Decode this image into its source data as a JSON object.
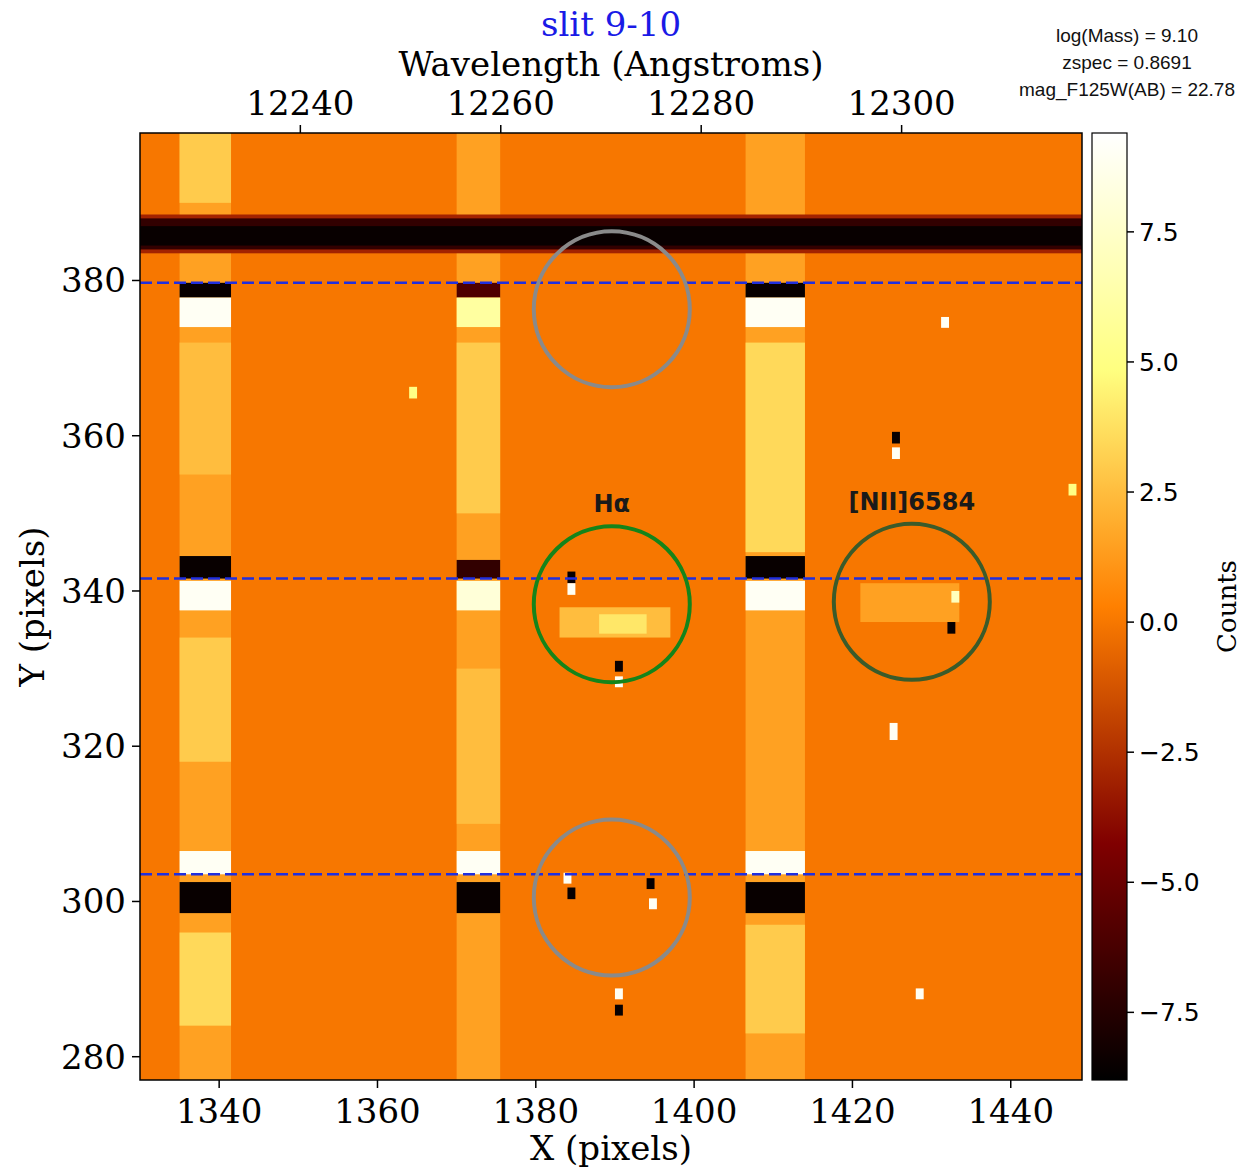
{
  "chart_data": {
    "type": "heatmap",
    "title": "slit 9-10",
    "x_label": "X (pixels)",
    "y_label": "Y (pixels)",
    "x2_label": "Wavelength (Angstroms)",
    "xlim": [
      1330,
      1449
    ],
    "ylim": [
      277,
      399
    ],
    "xticks": [
      1340,
      1360,
      1380,
      1400,
      1420,
      1440
    ],
    "yticks": [
      280,
      300,
      320,
      340,
      360,
      380
    ],
    "x2lim": [
      12224,
      12318
    ],
    "x2ticks": [
      12240,
      12260,
      12280,
      12300
    ],
    "colorbar_label": "Counts",
    "colorbar_lim": [
      -8.8,
      9.4
    ],
    "colorbar_ticks": [
      {
        "value": -7.5,
        "label": "−7.5"
      },
      {
        "value": -5,
        "label": "−5.0"
      },
      {
        "value": -2.5,
        "label": "−2.5"
      },
      {
        "value": 0,
        "label": "0.0"
      },
      2.5,
      {
        "value": 5,
        "label": "5.0"
      },
      7.5
    ],
    "background_value": 0,
    "cells": [
      {
        "x0": 1335,
        "x1": 1341.5,
        "y0": 277,
        "y1": 399,
        "value": 1.5
      },
      {
        "x0": 1335,
        "x1": 1341.5,
        "y0": 390,
        "y1": 399,
        "value": 3
      },
      {
        "x0": 1335,
        "x1": 1341.5,
        "y0": 355,
        "y1": 372,
        "value": 2.5
      },
      {
        "x0": 1335,
        "x1": 1341.5,
        "y0": 318,
        "y1": 334,
        "value": 3
      },
      {
        "x0": 1335,
        "x1": 1341.5,
        "y0": 284,
        "y1": 296,
        "value": 3.5
      },
      {
        "x0": 1370,
        "x1": 1375.5,
        "y0": 277,
        "y1": 399,
        "value": 1.5
      },
      {
        "x0": 1370,
        "x1": 1375.5,
        "y0": 310,
        "y1": 330,
        "value": 2.5
      },
      {
        "x0": 1370,
        "x1": 1375.5,
        "y0": 350,
        "y1": 372,
        "value": 3
      },
      {
        "x0": 1406.5,
        "x1": 1414,
        "y0": 277,
        "y1": 399,
        "value": 1.5
      },
      {
        "x0": 1406.5,
        "x1": 1414,
        "y0": 345,
        "y1": 372,
        "value": 3.5
      },
      {
        "x0": 1406.5,
        "x1": 1414,
        "y0": 283,
        "y1": 297,
        "value": 3
      },
      {
        "x0": 1330,
        "x1": 1449,
        "y0": 383.5,
        "y1": 388.5,
        "value": -3
      },
      {
        "x0": 1330,
        "x1": 1449,
        "y0": 384,
        "y1": 388,
        "value": -7
      },
      {
        "x0": 1330,
        "x1": 1449,
        "y0": 384.5,
        "y1": 387,
        "value": -8.5
      },
      {
        "x0": 1335,
        "x1": 1341.5,
        "y0": 377.8,
        "y1": 379.7,
        "value": -8.5
      },
      {
        "x0": 1335,
        "x1": 1341.5,
        "y0": 374,
        "y1": 377.8,
        "value": 9
      },
      {
        "x0": 1335,
        "x1": 1341.5,
        "y0": 341.6,
        "y1": 344.5,
        "value": -8.5
      },
      {
        "x0": 1335,
        "x1": 1341.5,
        "y0": 337.5,
        "y1": 341.3,
        "value": 9
      },
      {
        "x0": 1335,
        "x1": 1341.5,
        "y0": 303.5,
        "y1": 306.5,
        "value": 9
      },
      {
        "x0": 1335,
        "x1": 1341.5,
        "y0": 298.5,
        "y1": 302.5,
        "value": -8.5
      },
      {
        "x0": 1370,
        "x1": 1375.5,
        "y0": 377.8,
        "y1": 379.7,
        "value": -6
      },
      {
        "x0": 1370,
        "x1": 1375.5,
        "y0": 374,
        "y1": 377.8,
        "value": 6
      },
      {
        "x0": 1370,
        "x1": 1375.5,
        "y0": 341.6,
        "y1": 344,
        "value": -7
      },
      {
        "x0": 1370,
        "x1": 1375.5,
        "y0": 337.5,
        "y1": 341.3,
        "value": 8
      },
      {
        "x0": 1370,
        "x1": 1375.5,
        "y0": 303.5,
        "y1": 306.5,
        "value": 9
      },
      {
        "x0": 1370,
        "x1": 1375.5,
        "y0": 298.5,
        "y1": 302.5,
        "value": -8.5
      },
      {
        "x0": 1406.5,
        "x1": 1414,
        "y0": 377.8,
        "y1": 379.7,
        "value": -8.5
      },
      {
        "x0": 1406.5,
        "x1": 1414,
        "y0": 374,
        "y1": 377.8,
        "value": 9
      },
      {
        "x0": 1406.5,
        "x1": 1414,
        "y0": 341.6,
        "y1": 344.5,
        "value": -8.5
      },
      {
        "x0": 1406.5,
        "x1": 1414,
        "y0": 337.5,
        "y1": 341.3,
        "value": 9
      },
      {
        "x0": 1406.5,
        "x1": 1414,
        "y0": 303.5,
        "y1": 306.5,
        "value": 9
      },
      {
        "x0": 1406.5,
        "x1": 1414,
        "y0": 298.5,
        "y1": 302.5,
        "value": -8.5
      },
      {
        "x0": 1383,
        "x1": 1397,
        "y0": 334,
        "y1": 337.9,
        "value": 2.5
      },
      {
        "x0": 1388,
        "x1": 1394,
        "y0": 334.5,
        "y1": 337,
        "value": 4
      },
      {
        "x0": 1421,
        "x1": 1433.5,
        "y0": 336,
        "y1": 341,
        "value": 1.5
      },
      {
        "x0": 1384,
        "x1": 1385,
        "y0": 341,
        "y1": 342.5,
        "value": -8.5
      },
      {
        "x0": 1384,
        "x1": 1385,
        "y0": 339.5,
        "y1": 341,
        "value": 9
      },
      {
        "x0": 1390,
        "x1": 1391,
        "y0": 329.6,
        "y1": 331,
        "value": -8.5
      },
      {
        "x0": 1390,
        "x1": 1391,
        "y0": 327.6,
        "y1": 329,
        "value": 9
      },
      {
        "x0": 1383.5,
        "x1": 1384.5,
        "y0": 302.3,
        "y1": 303.7,
        "value": 9
      },
      {
        "x0": 1384,
        "x1": 1385,
        "y0": 300.3,
        "y1": 301.8,
        "value": -8.5
      },
      {
        "x0": 1394,
        "x1": 1395,
        "y0": 301.6,
        "y1": 303,
        "value": -8.5
      },
      {
        "x0": 1394.3,
        "x1": 1395.3,
        "y0": 299,
        "y1": 300.4,
        "value": 9
      },
      {
        "x0": 1390,
        "x1": 1391,
        "y0": 287.4,
        "y1": 288.8,
        "value": 9
      },
      {
        "x0": 1390,
        "x1": 1391,
        "y0": 285.3,
        "y1": 286.7,
        "value": -8.5
      },
      {
        "x0": 1425,
        "x1": 1426,
        "y0": 359,
        "y1": 360.5,
        "value": -8.5
      },
      {
        "x0": 1425,
        "x1": 1426,
        "y0": 357,
        "y1": 358.5,
        "value": 9
      },
      {
        "x0": 1424.7,
        "x1": 1425.7,
        "y0": 320.8,
        "y1": 323,
        "value": 9
      },
      {
        "x0": 1432,
        "x1": 1433,
        "y0": 334.5,
        "y1": 336,
        "value": -8.5
      },
      {
        "x0": 1432.5,
        "x1": 1433.5,
        "y0": 338.5,
        "y1": 340,
        "value": 7
      },
      {
        "x0": 1428,
        "x1": 1429,
        "y0": 287.4,
        "y1": 288.8,
        "value": 9
      },
      {
        "x0": 1364,
        "x1": 1365,
        "y0": 364.8,
        "y1": 366.3,
        "value": 5
      },
      {
        "x0": 1431.2,
        "x1": 1432.2,
        "y0": 373.9,
        "y1": 375.3,
        "value": 9
      },
      {
        "x0": 1447.3,
        "x1": 1448.3,
        "y0": 352.3,
        "y1": 353.8,
        "value": 5
      }
    ],
    "hlines": [
      379.7,
      341.6,
      303.5
    ],
    "circles": [
      {
        "x": 1389.6,
        "y": 376.3,
        "color": "#8a8a8a"
      },
      {
        "x": 1389.6,
        "y": 338.3,
        "color": "#15841a",
        "label": "Hα"
      },
      {
        "x": 1427.5,
        "x_unit": null,
        "y": 338.6,
        "color": "#3b5b2a",
        "label": "[NII]6584"
      },
      {
        "x": 1389.6,
        "y": 300.5,
        "color": "#8a8a8a"
      }
    ],
    "annotations": [
      "log(Mass) = 9.10",
      "zspec = 0.8691",
      "mag_F125W(AB) = 22.78"
    ]
  }
}
